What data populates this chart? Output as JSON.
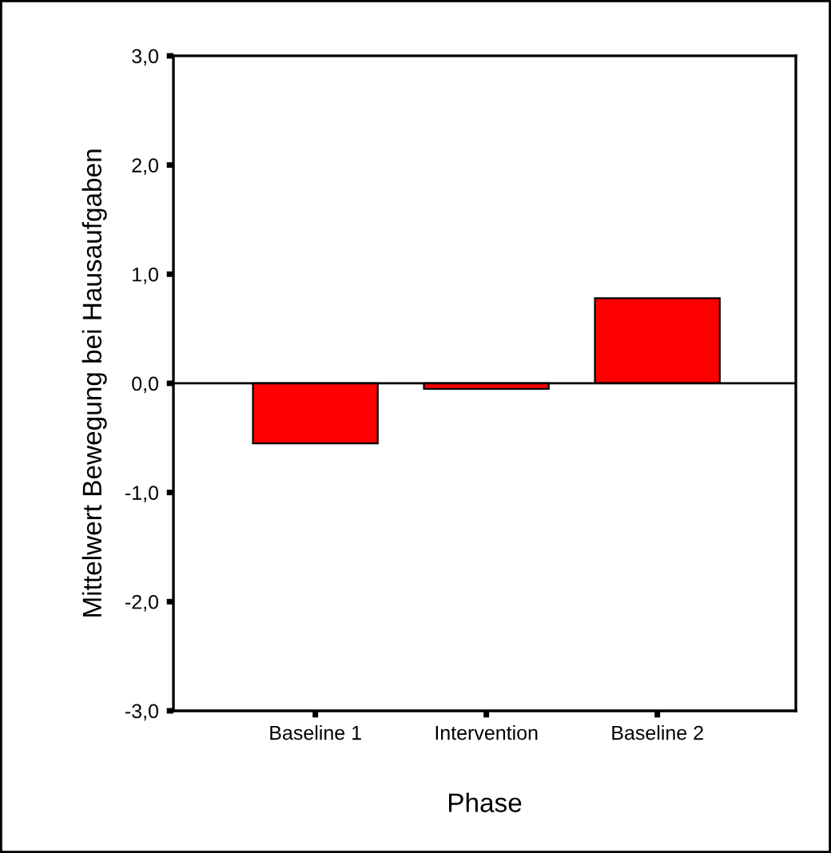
{
  "chart_data": {
    "type": "bar",
    "xlabel": "Phase",
    "ylabel": "Mittelwert Bewegung bei Hausaufgaben",
    "categories": [
      "Baseline 1",
      "Intervention",
      "Baseline 2"
    ],
    "values": [
      -0.55,
      -0.05,
      0.78
    ],
    "color": "#ff0000",
    "ylim": [
      -3,
      3
    ],
    "yticks": [
      {
        "value": -3,
        "label": "-3,0"
      },
      {
        "value": -2,
        "label": "-2,0"
      },
      {
        "value": -1,
        "label": "-1,0"
      },
      {
        "value": 0,
        "label": "0,0"
      },
      {
        "value": 1,
        "label": "1,0"
      },
      {
        "value": 2,
        "label": "2,0"
      },
      {
        "value": 3,
        "label": "3,0"
      }
    ],
    "ref_lines": [
      {
        "axis": "y",
        "value": 0,
        "color": "#000000"
      }
    ],
    "grid": false,
    "legend": false
  }
}
